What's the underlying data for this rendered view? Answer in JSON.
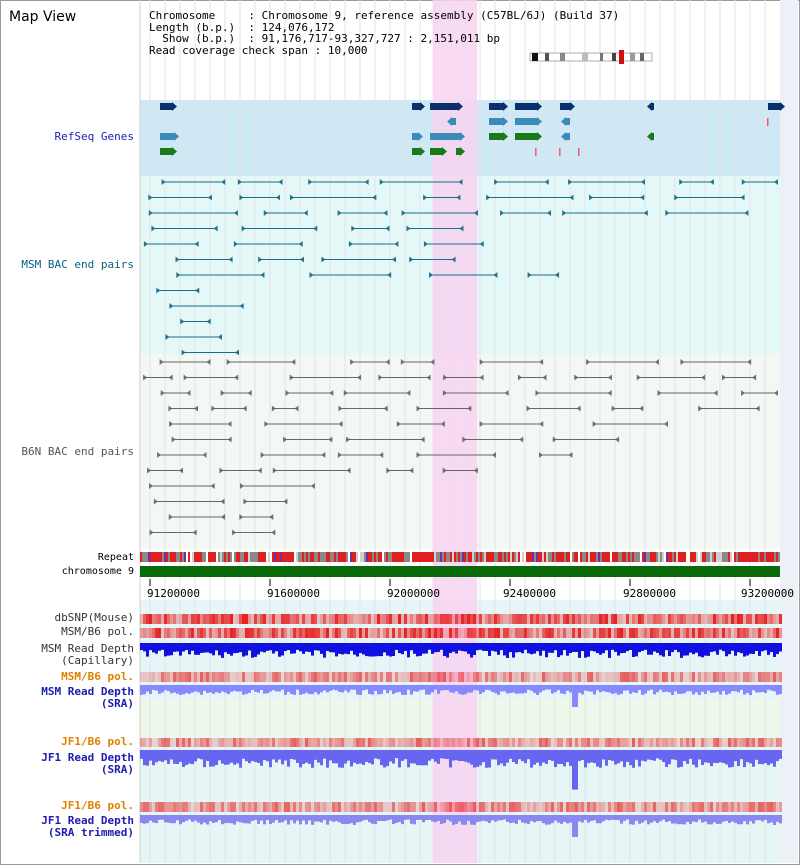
{
  "title": "Map View",
  "info": {
    "chromosome_key": "Chromosome",
    "chromosome_val": ": Chromosome 9, reference assembly (C57BL/6J) (Build 37)",
    "length_key": "Length (b.p.)",
    "length_val": ": 124,076,172",
    "show_key": "Show (b.p.)",
    "show_val": ": 91,176,717-93,327,727 : 2,151,011 bp",
    "coverage_key": "Read coverage check span",
    "coverage_val": ": 10,000"
  },
  "tracks": {
    "refseq": "RefSeq Genes",
    "msm_bac": "MSM BAC end pairs",
    "b6n_bac": "B6N BAC end pairs",
    "repeat": "Repeat",
    "chromosome": "chromosome 9",
    "dbsnp": "dbSNP(Mouse)",
    "msm_b6_pol_1": "MSM/B6 pol.",
    "msm_depth_cap_1": "MSM Read Depth",
    "msm_depth_cap_2": "(Capillary)",
    "msm_b6_pol_2": "MSM/B6 pol.",
    "msm_depth_sra_1": "MSM Read Depth",
    "msm_depth_sra_2": "(SRA)",
    "jf1_b6_pol_1": "JF1/B6 pol.",
    "jf1_depth_sra_1": "JF1 Read Depth",
    "jf1_depth_sra_2": "(SRA)",
    "jf1_b6_pol_2": "JF1/B6 pol.",
    "jf1_depth_trim_1": "JF1 Read Depth",
    "jf1_depth_trim_2": "(SRA trimmed)"
  },
  "axis": {
    "ticks": [
      "91200000",
      "91600000",
      "92000000",
      "92400000",
      "92800000",
      "93200000"
    ]
  },
  "view": {
    "start": 91176717,
    "end": 93327727
  },
  "highlight": {
    "start": 92160000,
    "end": 92310000
  },
  "colors": {
    "refseq_bg": "#cfe8f5",
    "msm_bg": "#e4f8f8",
    "b6n_bg": "#f4f8f4",
    "highlight": "#f7d3f1",
    "gene_dark": "#0a2f6a",
    "gene_mid": "#3c8ab8",
    "gene_green": "#1a7a1a",
    "msm_pair": "#1a6c8a",
    "b6n_pair": "#666666",
    "chromosome_bar": "#0a6a0a",
    "depth_blue": "#1010e0",
    "depth_light": "#8888ff",
    "label_blue": "#1c1cb0",
    "label_teal": "#0a6080",
    "label_orange": "#e08000"
  }
}
